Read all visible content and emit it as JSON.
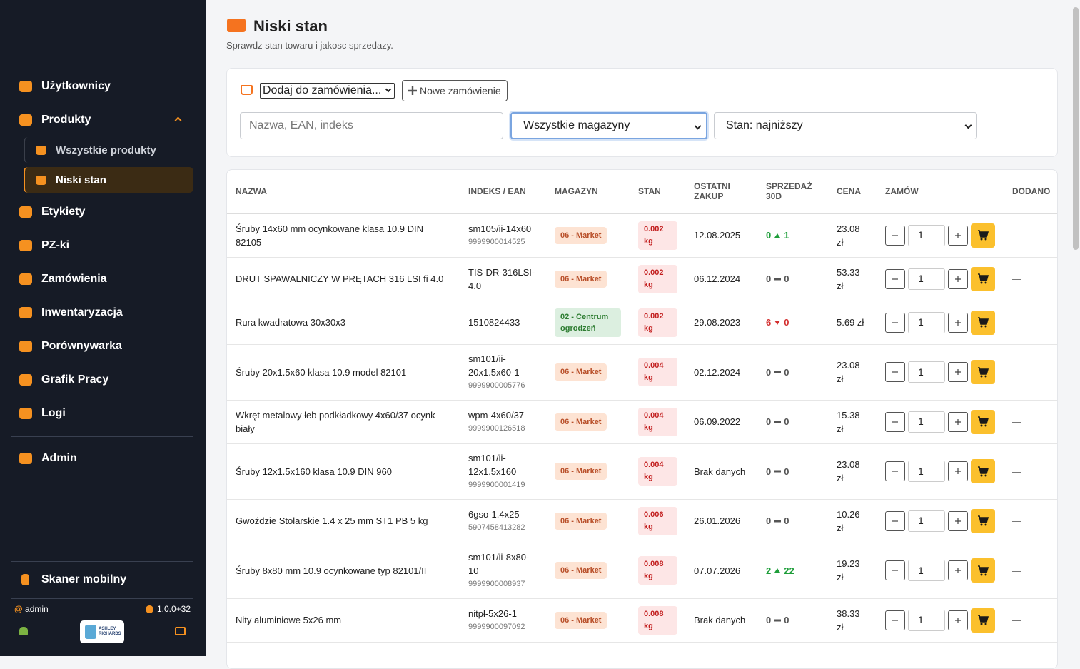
{
  "sidebar": {
    "nav": [
      "Użytkownicy",
      "Produkty",
      "Etykiety",
      "PZ-ki",
      "Zamówienia",
      "Inwentaryzacja",
      "Porównywarka",
      "Grafik Pracy",
      "Logi"
    ],
    "subnav": [
      "Wszystkie produkty",
      "Niski stan"
    ],
    "admin": "Admin",
    "mobile": "Skaner mobilny",
    "user": "admin",
    "version": "1.0.0+32",
    "logo": [
      "ASHLEY",
      "RICHARDS"
    ]
  },
  "header": {
    "title": "Niski stan",
    "subtitle": "Sprawdz stan towaru i jakosc sprzedazy."
  },
  "toolbar": {
    "order_select": "Dodaj do zamówienia...",
    "new_order": "Nowe zamówienie",
    "search_placeholder": "Nazwa, EAN, indeks",
    "warehouse_select": "Wszystkie magazyny",
    "sort_select": "Stan: najniższy"
  },
  "table": {
    "columns": [
      "NAZWA",
      "INDEKS / EAN",
      "MAGAZYN",
      "STAN",
      "OSTATNI ZAKUP",
      "SPRZEDAŻ 30D",
      "CENA",
      "ZAMÓW",
      "DODANO"
    ],
    "rows": [
      {
        "name": "Śruby 14x60 mm ocynkowane klasa 10.9 DIN 82105",
        "index": "sm105/ii-14x60",
        "ean": "9999900014525",
        "warehouse": "06 - Market",
        "warehouse_color": "#fde3d3",
        "stock": "0.002 kg",
        "last_purchase": "12.08.2025",
        "sales_from": 0,
        "sales_to": 1,
        "price": "23.08 zł",
        "qty": "1",
        "added": "—"
      },
      {
        "name": "DRUT SPAWALNICZY W PRĘTACH 316 LSI fi 4.0",
        "index": "TIS-DR-316LSI-4.0",
        "warehouse": "06 - Market",
        "warehouse_color": "#fde3d3",
        "stock": "0.002 kg",
        "last_purchase": "06.12.2024",
        "sales_from": 0,
        "sales_to": 0,
        "price": "53.33 zł",
        "qty": "1",
        "added": "—"
      },
      {
        "name": "Rura kwadratowa 30x30x3",
        "index": "1510824433",
        "warehouse": "02 - Centrum ogrodzeń",
        "warehouse_color": "#dcefe0",
        "stock": "0.002 kg",
        "last_purchase": "29.08.2023",
        "sales_from": 6,
        "sales_to": 0,
        "price": "5.69 zł",
        "qty": "1",
        "added": "—"
      },
      {
        "name": "Śruby 20x1.5x60 klasa 10.9 model 82101",
        "index": "sm101/ii-20x1.5x60-1",
        "ean": "9999900005776",
        "warehouse": "06 - Market",
        "warehouse_color": "#fde3d3",
        "stock": "0.004 kg",
        "last_purchase": "02.12.2024",
        "sales_from": 0,
        "sales_to": 0,
        "price": "23.08 zł",
        "qty": "1",
        "added": "—"
      },
      {
        "name": "Wkręt metalowy łeb podkładkowy 4x60/37 ocynk biały",
        "index": "wpm-4x60/37",
        "ean": "9999900126518",
        "warehouse": "06 - Market",
        "warehouse_color": "#fde3d3",
        "stock": "0.004 kg",
        "last_purchase": "06.09.2022",
        "sales_from": 0,
        "sales_to": 0,
        "price": "15.38 zł",
        "qty": "1",
        "added": "—"
      },
      {
        "name": "Śruby 12x1.5x160 klasa 10.9 DIN 960",
        "index": "sm101/ii-12x1.5x160",
        "ean": "9999900001419",
        "warehouse": "06 - Market",
        "warehouse_color": "#fde3d3",
        "stock": "0.004 kg",
        "last_purchase": "Brak danych",
        "sales_from": 0,
        "sales_to": 0,
        "price": "23.08 zł",
        "qty": "1",
        "added": "—"
      },
      {
        "name": "Gwoździe Stolarskie 1.4 x 25 mm ST1 PB 5 kg",
        "index": "6gso-1.4x25",
        "ean": "5907458413282",
        "warehouse": "06 - Market",
        "warehouse_color": "#fde3d3",
        "stock": "0.006 kg",
        "last_purchase": "26.01.2026",
        "sales_from": 0,
        "sales_to": 0,
        "price": "10.26 zł",
        "qty": "1",
        "added": "—"
      },
      {
        "name": "Śruby 8x80 mm 10.9 ocynkowane typ 82101/II",
        "index": "sm101/ii-8x80-10",
        "ean": "9999900008937",
        "warehouse": "06 - Market",
        "warehouse_color": "#fde3d3",
        "stock": "0.008 kg",
        "last_purchase": "07.07.2026",
        "sales_from": 2,
        "sales_to": 22,
        "price": "19.23 zł",
        "qty": "1",
        "added": "—"
      },
      {
        "name": "Nity aluminiowe 5x26 mm",
        "index": "nitpł-5x26-1",
        "ean": "9999900097092",
        "warehouse": "06 - Market",
        "warehouse_color": "#fde3d3",
        "stock": "0.008 kg",
        "last_purchase": "Brak danych",
        "sales_from": 0,
        "sales_to": 0,
        "price": "38.33 zł",
        "qty": "1",
        "added": "—"
      }
    ]
  }
}
